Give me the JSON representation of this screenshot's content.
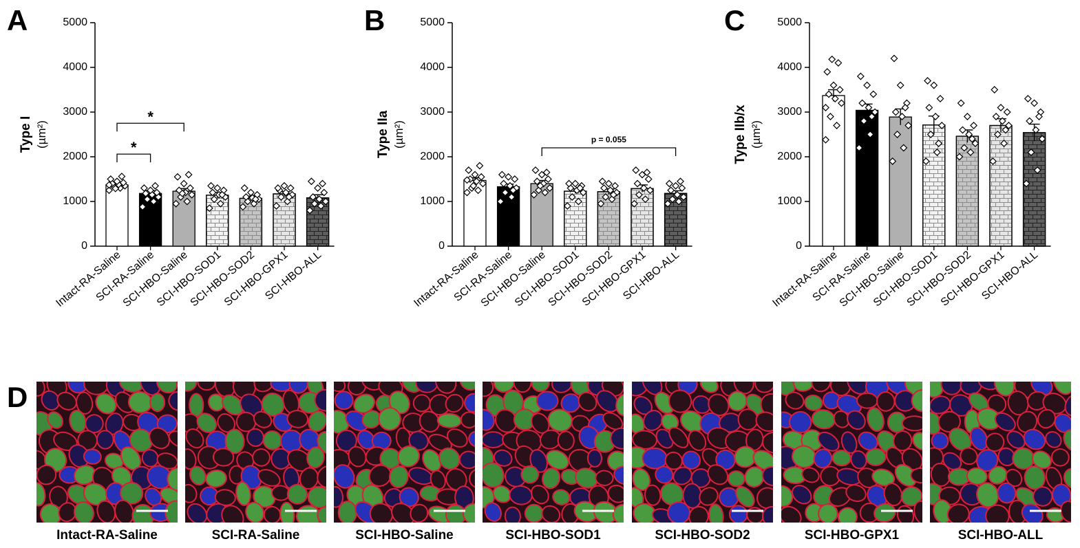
{
  "chart_data": [
    {
      "type": "bar",
      "panel": "A",
      "ylabel": "Type I",
      "yunit": "(µm²)",
      "categories": [
        "Intact-RA-Saline",
        "SCI-RA-Saline",
        "SCI-HBO-Saline",
        "SCI-HBO-SOD1",
        "SCI-HBO-SOD2",
        "SCI-HBO-GPX1",
        "SCI-HBO-ALL"
      ],
      "values": [
        1370,
        1180,
        1230,
        1140,
        1070,
        1170,
        1080
      ],
      "errors": [
        40,
        60,
        60,
        60,
        50,
        50,
        70
      ],
      "points": [
        [
          1250,
          1300,
          1330,
          1350,
          1380,
          1400,
          1420,
          1450,
          1500,
          1560,
          1290,
          1370
        ],
        [
          880,
          1000,
          1050,
          1100,
          1150,
          1180,
          1200,
          1250,
          1300,
          1350
        ],
        [
          950,
          1000,
          1100,
          1150,
          1200,
          1250,
          1300,
          1400,
          1550,
          1600,
          1180
        ],
        [
          850,
          950,
          1050,
          1100,
          1150,
          1200,
          1250,
          1300,
          1350,
          1150
        ],
        [
          880,
          950,
          1000,
          1050,
          1080,
          1100,
          1150,
          1200,
          1300,
          1050
        ],
        [
          900,
          1000,
          1100,
          1150,
          1200,
          1250,
          1300,
          1350,
          1300,
          1100
        ],
        [
          800,
          900,
          950,
          1000,
          1050,
          1100,
          1200,
          1300,
          1450,
          1400
        ]
      ],
      "colors": [
        "#ffffff",
        "#000000",
        "#b0b0b0",
        "#f2f2f2",
        "#c4c4c4",
        "#e6e6e6",
        "#5e5e5e"
      ],
      "hatch": [
        false,
        false,
        false,
        true,
        true,
        true,
        true
      ],
      "ylim": [
        0,
        5000
      ],
      "yticks": [
        0,
        1000,
        2000,
        3000,
        4000,
        5000
      ],
      "annotations": [
        {
          "text": "*",
          "from": "Intact-RA-Saline",
          "to": "SCI-RA-Saline"
        },
        {
          "text": "*",
          "from": "Intact-RA-Saline",
          "to": "SCI-HBO-Saline"
        }
      ]
    },
    {
      "type": "bar",
      "panel": "B",
      "ylabel": "Type IIa",
      "yunit": "(µm²)",
      "categories": [
        "Intact-RA-Saline",
        "SCI-RA-Saline",
        "SCI-HBO-Saline",
        "SCI-HBO-SOD1",
        "SCI-HBO-SOD2",
        "SCI-HBO-GPX1",
        "SCI-HBO-ALL"
      ],
      "values": [
        1470,
        1330,
        1400,
        1230,
        1220,
        1290,
        1180
      ],
      "errors": [
        60,
        60,
        70,
        50,
        60,
        80,
        60
      ],
      "points": [
        [
          1200,
          1250,
          1300,
          1400,
          1450,
          1500,
          1550,
          1600,
          1700,
          1800,
          1350,
          1480
        ],
        [
          1000,
          1100,
          1200,
          1300,
          1350,
          1400,
          1500,
          1550,
          1600,
          1250
        ],
        [
          1150,
          1200,
          1250,
          1300,
          1400,
          1450,
          1500,
          1600,
          1700,
          1650,
          1350
        ],
        [
          900,
          1000,
          1100,
          1200,
          1250,
          1300,
          1350,
          1400,
          1400,
          1300
        ],
        [
          950,
          1050,
          1100,
          1200,
          1250,
          1300,
          1350,
          1400,
          1450,
          1150
        ],
        [
          950,
          1050,
          1150,
          1250,
          1300,
          1400,
          1500,
          1600,
          1700,
          1650
        ],
        [
          950,
          1000,
          1050,
          1100,
          1150,
          1250,
          1300,
          1350,
          1400,
          1450
        ]
      ],
      "colors": [
        "#ffffff",
        "#000000",
        "#b0b0b0",
        "#f2f2f2",
        "#c4c4c4",
        "#e6e6e6",
        "#5e5e5e"
      ],
      "hatch": [
        false,
        false,
        false,
        true,
        true,
        true,
        true
      ],
      "ylim": [
        0,
        5000
      ],
      "yticks": [
        0,
        1000,
        2000,
        3000,
        4000,
        5000
      ],
      "annotations": [
        {
          "text": "p = 0.055",
          "from": "SCI-HBO-Saline",
          "to": "SCI-HBO-ALL"
        }
      ]
    },
    {
      "type": "bar",
      "panel": "C",
      "ylabel": "Type IIb/x",
      "yunit": "(µm²)",
      "categories": [
        "Intact-RA-Saline",
        "SCI-RA-Saline",
        "SCI-HBO-Saline",
        "SCI-HBO-SOD1",
        "SCI-HBO-SOD2",
        "SCI-HBO-GPX1",
        "SCI-HBO-ALL"
      ],
      "values": [
        3370,
        3040,
        2890,
        2710,
        2460,
        2700,
        2540
      ],
      "errors": [
        130,
        140,
        180,
        200,
        140,
        150,
        190
      ],
      "points": [
        [
          2380,
          2700,
          2900,
          3200,
          3300,
          3400,
          3500,
          3600,
          3900,
          4100,
          4180,
          3100
        ],
        [
          2200,
          2500,
          2800,
          3000,
          3100,
          3200,
          3400,
          3600,
          3800,
          2900
        ],
        [
          1900,
          2200,
          2500,
          2700,
          2900,
          3000,
          3200,
          3600,
          4200,
          3100
        ],
        [
          1900,
          2100,
          2500,
          2700,
          2900,
          3100,
          3300,
          3600,
          3700,
          2300
        ],
        [
          2000,
          2100,
          2200,
          2300,
          2500,
          2600,
          2700,
          2900,
          3200,
          2400
        ],
        [
          1900,
          2300,
          2500,
          2700,
          2800,
          2900,
          3000,
          3100,
          3500,
          2600
        ],
        [
          1400,
          1700,
          2100,
          2400,
          2600,
          2800,
          3000,
          3200,
          3300,
          2900
        ]
      ],
      "colors": [
        "#ffffff",
        "#000000",
        "#b0b0b0",
        "#f2f2f2",
        "#c4c4c4",
        "#e6e6e6",
        "#5e5e5e"
      ],
      "hatch": [
        false,
        false,
        false,
        true,
        true,
        true,
        true
      ],
      "ylim": [
        0,
        5000
      ],
      "yticks": [
        0,
        1000,
        2000,
        3000,
        4000,
        5000
      ],
      "annotations": []
    }
  ],
  "panel_d": {
    "panel": "D",
    "labels": [
      "Intact-RA-Saline",
      "SCI-RA-Saline",
      "SCI-HBO-Saline",
      "SCI-HBO-SOD1",
      "SCI-HBO-SOD2",
      "SCI-HBO-GPX1",
      "SCI-HBO-ALL"
    ]
  }
}
